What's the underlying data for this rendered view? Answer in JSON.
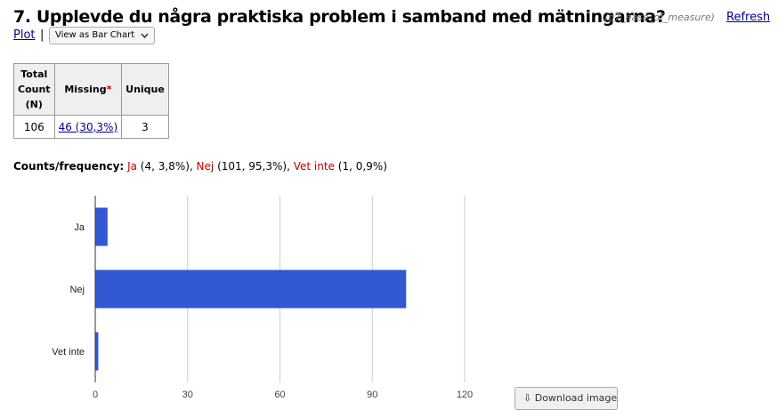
{
  "header": {
    "title": "7. Upplevde du några praktiska problem i samband med mätningarna?",
    "variable": "(q7_ease_of_measure)",
    "refresh_label": "Refresh"
  },
  "controls": {
    "plot_label": "Plot",
    "separator": "|",
    "view_select": "View as Bar Chart"
  },
  "stats_table": {
    "headers": {
      "total_line1": "Total",
      "total_line2": "Count",
      "total_line3": "(N)",
      "missing": "Missing",
      "missing_marker": "*",
      "unique": "Unique"
    },
    "total": "106",
    "missing": "46 (30,3%)",
    "unique": "3"
  },
  "frequency": {
    "label": "Counts/frequency:",
    "items": [
      {
        "category": "Ja",
        "detail": " (4, 3,8%)",
        "sep": ", "
      },
      {
        "category": "Nej",
        "detail": " (101, 95,3%)",
        "sep": ", "
      },
      {
        "category": "Vet inte",
        "detail": " (1, 0,9%)",
        "sep": ""
      }
    ]
  },
  "chart_data": {
    "type": "bar",
    "orientation": "horizontal",
    "categories": [
      "Ja",
      "Nej",
      "Vet inte"
    ],
    "values": [
      4,
      101,
      1
    ],
    "xlim": [
      0,
      120
    ],
    "xticks": [
      0,
      30,
      60,
      90,
      120
    ],
    "grid": true,
    "bar_color": "#3358d4"
  },
  "download": {
    "label": "Download image",
    "icon": "download-icon"
  }
}
